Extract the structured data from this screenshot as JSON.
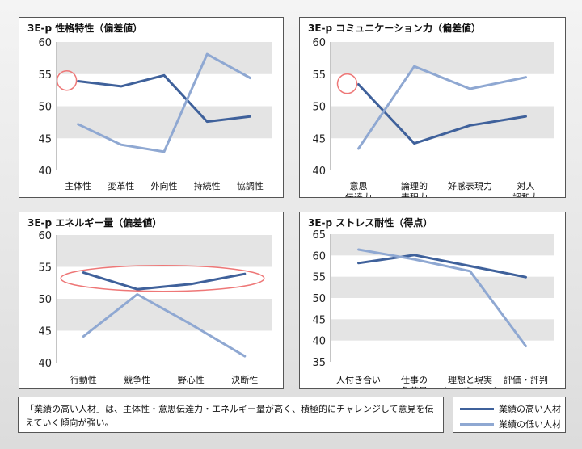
{
  "colors": {
    "high": "#3f619b",
    "low": "#8fa8d2",
    "band": "#e4e4e4",
    "highlight": "#ee7777"
  },
  "chart_data": [
    {
      "type": "line",
      "title": "3E-p 性格特性（偏差値）",
      "categories": [
        [
          "主体性"
        ],
        [
          "変革性"
        ],
        [
          "外向性"
        ],
        [
          "持続性"
        ],
        [
          "協調性"
        ]
      ],
      "ylim": [
        40,
        60
      ],
      "yticks": [
        40,
        45,
        50,
        55,
        60
      ],
      "series": [
        {
          "name": "業績の高い人材",
          "values": [
            53.9,
            53.1,
            54.8,
            47.6,
            48.4
          ]
        },
        {
          "name": "業績の低い人材",
          "values": [
            47.2,
            44.0,
            42.9,
            58.1,
            54.4
          ]
        }
      ],
      "annotations": [
        {
          "shape": "circle",
          "category": 0,
          "value": 54
        }
      ]
    },
    {
      "type": "line",
      "title": "3E-p コミュニケーション力（偏差値）",
      "categories": [
        [
          "意思",
          "伝達力"
        ],
        [
          "論理的",
          "表現力"
        ],
        [
          "好感表現力"
        ],
        [
          "対人",
          "調和力"
        ]
      ],
      "ylim": [
        40,
        60
      ],
      "yticks": [
        40,
        45,
        50,
        55,
        60
      ],
      "series": [
        {
          "name": "業績の高い人材",
          "values": [
            53.4,
            44.2,
            47.0,
            48.4
          ]
        },
        {
          "name": "業績の低い人材",
          "values": [
            43.4,
            56.2,
            52.7,
            54.5
          ]
        }
      ],
      "annotations": [
        {
          "shape": "circle",
          "category": 0,
          "value": 53.5
        }
      ]
    },
    {
      "type": "line",
      "title": "3E-p エネルギー量（偏差値）",
      "categories": [
        [
          "行動性"
        ],
        [
          "競争性"
        ],
        [
          "野心性"
        ],
        [
          "決断性"
        ]
      ],
      "ylim": [
        40,
        60
      ],
      "yticks": [
        40,
        45,
        50,
        55,
        60
      ],
      "series": [
        {
          "name": "業績の高い人材",
          "values": [
            54.1,
            51.5,
            52.3,
            53.9
          ]
        },
        {
          "name": "業績の低い人材",
          "values": [
            44.1,
            50.7,
            46.0,
            41.0
          ]
        }
      ],
      "annotations": [
        {
          "shape": "ellipse",
          "from": 0,
          "to": 3,
          "value": 53.2
        }
      ]
    },
    {
      "type": "line",
      "title": "3E-p ストレス耐性（得点）",
      "categories": [
        [
          "人付き合い"
        ],
        [
          "仕事の",
          "負荷量"
        ],
        [
          "理想と現実",
          "とのギャップ"
        ],
        [
          "評価・評判"
        ]
      ],
      "ylim": [
        35,
        65
      ],
      "yticks": [
        35,
        40,
        45,
        50,
        55,
        60,
        65
      ],
      "series": [
        {
          "name": "業績の高い人材",
          "values": [
            58.2,
            60.1,
            57.5,
            54.9
          ]
        },
        {
          "name": "業績の低い人材",
          "values": [
            61.4,
            59.1,
            56.3,
            38.7
          ]
        }
      ],
      "annotations": []
    }
  ],
  "note": "「業績の高い人材」は、主体性・意思伝達力・エネルギー量が高く、積極的にチャレンジして意見を伝えていく傾向が強い。",
  "legend": {
    "high": "業績の高い人材",
    "low": "業績の低い人材"
  }
}
